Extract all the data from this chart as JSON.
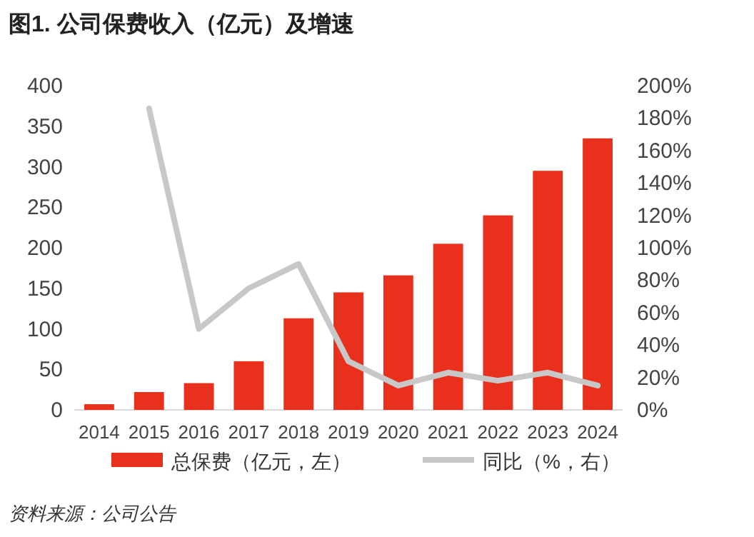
{
  "chart_data": {
    "type": "bar",
    "title": "图1. 公司保费收入（亿元）及增速",
    "categories": [
      "2014",
      "2015",
      "2016",
      "2017",
      "2018",
      "2019",
      "2020",
      "2021",
      "2022",
      "2023",
      "2024"
    ],
    "series": [
      {
        "name": "总保费（亿元，左）",
        "color": "#e8301c",
        "values": [
          7,
          22,
          33,
          60,
          113,
          145,
          166,
          205,
          240,
          295,
          335
        ]
      },
      {
        "name": "同比（%，右）",
        "type": "line",
        "axis": "y2",
        "color": "#c8c8c8",
        "values": [
          null,
          186,
          50,
          75,
          90,
          30,
          15,
          23,
          18,
          23,
          15
        ]
      }
    ],
    "ylim": [
      0,
      400
    ],
    "yticks": [
      0,
      50,
      100,
      150,
      200,
      250,
      300,
      350,
      400
    ],
    "y2lim": [
      0,
      200
    ],
    "y2ticks": [
      {
        "value": 0,
        "label": "0%"
      },
      {
        "value": 20,
        "label": "20%"
      },
      {
        "value": 40,
        "label": "40%"
      },
      {
        "value": 60,
        "label": "60%"
      },
      {
        "value": 80,
        "label": "80%"
      },
      {
        "value": 100,
        "label": "100%"
      },
      {
        "value": 120,
        "label": "120%"
      },
      {
        "value": 140,
        "label": "140%"
      },
      {
        "value": 160,
        "label": "160%"
      },
      {
        "value": 180,
        "label": "180%"
      },
      {
        "value": 200,
        "label": "200%"
      }
    ],
    "grid": false,
    "legend": "bottom",
    "marker": "none",
    "line_style": "solid",
    "annotations": [
      "资料来源：公司公告"
    ]
  }
}
